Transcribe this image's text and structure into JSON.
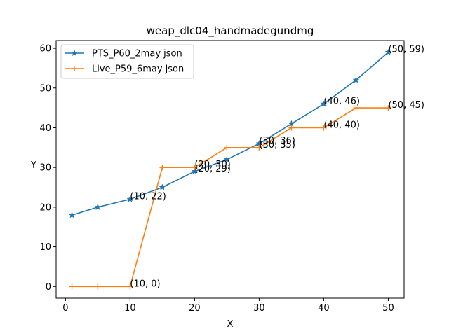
{
  "chart_data": {
    "type": "line",
    "title": "weap_dlc04_handmadegundmg",
    "xlabel": "X",
    "ylabel": "Y",
    "xlim": [
      -1.45,
      52.45
    ],
    "ylim": [
      -2.95,
      61.95
    ],
    "xticks": [
      0,
      10,
      20,
      30,
      40,
      50
    ],
    "yticks": [
      0,
      10,
      20,
      30,
      40,
      50,
      60
    ],
    "grid": false,
    "legend_position": "upper-left",
    "series": [
      {
        "name": "PTS_P60_2may json",
        "color": "#1f77b4",
        "marker": "star",
        "x": [
          1,
          5,
          10,
          15,
          20,
          25,
          30,
          35,
          40,
          45,
          50
        ],
        "y": [
          18,
          20,
          22,
          25,
          29,
          32,
          36,
          41,
          46,
          52,
          59
        ]
      },
      {
        "name": "Live_P59_6may json",
        "color": "#ff7f0e",
        "marker": "plus",
        "x": [
          1,
          5,
          10,
          15,
          20,
          25,
          30,
          35,
          40,
          45,
          50
        ],
        "y": [
          0,
          0,
          0,
          30,
          30,
          35,
          35,
          40,
          40,
          45,
          45
        ]
      }
    ],
    "annotations": [
      {
        "text": "(10, 22)",
        "x": 10,
        "y": 22,
        "series": 0
      },
      {
        "text": "(20, 29)",
        "x": 20,
        "y": 29,
        "series": 0
      },
      {
        "text": "(30, 36)",
        "x": 30,
        "y": 36,
        "series": 0
      },
      {
        "text": "(40, 46)",
        "x": 40,
        "y": 46,
        "series": 0
      },
      {
        "text": "(50, 59)",
        "x": 50,
        "y": 59,
        "series": 0
      },
      {
        "text": "(10, 0)",
        "x": 10,
        "y": 0,
        "series": 1
      },
      {
        "text": "(20, 30)",
        "x": 20,
        "y": 30,
        "series": 1
      },
      {
        "text": "(30, 35)",
        "x": 30,
        "y": 35,
        "series": 1
      },
      {
        "text": "(40, 40)",
        "x": 40,
        "y": 40,
        "series": 1
      },
      {
        "text": "(50, 45)",
        "x": 50,
        "y": 45,
        "series": 1
      }
    ]
  }
}
